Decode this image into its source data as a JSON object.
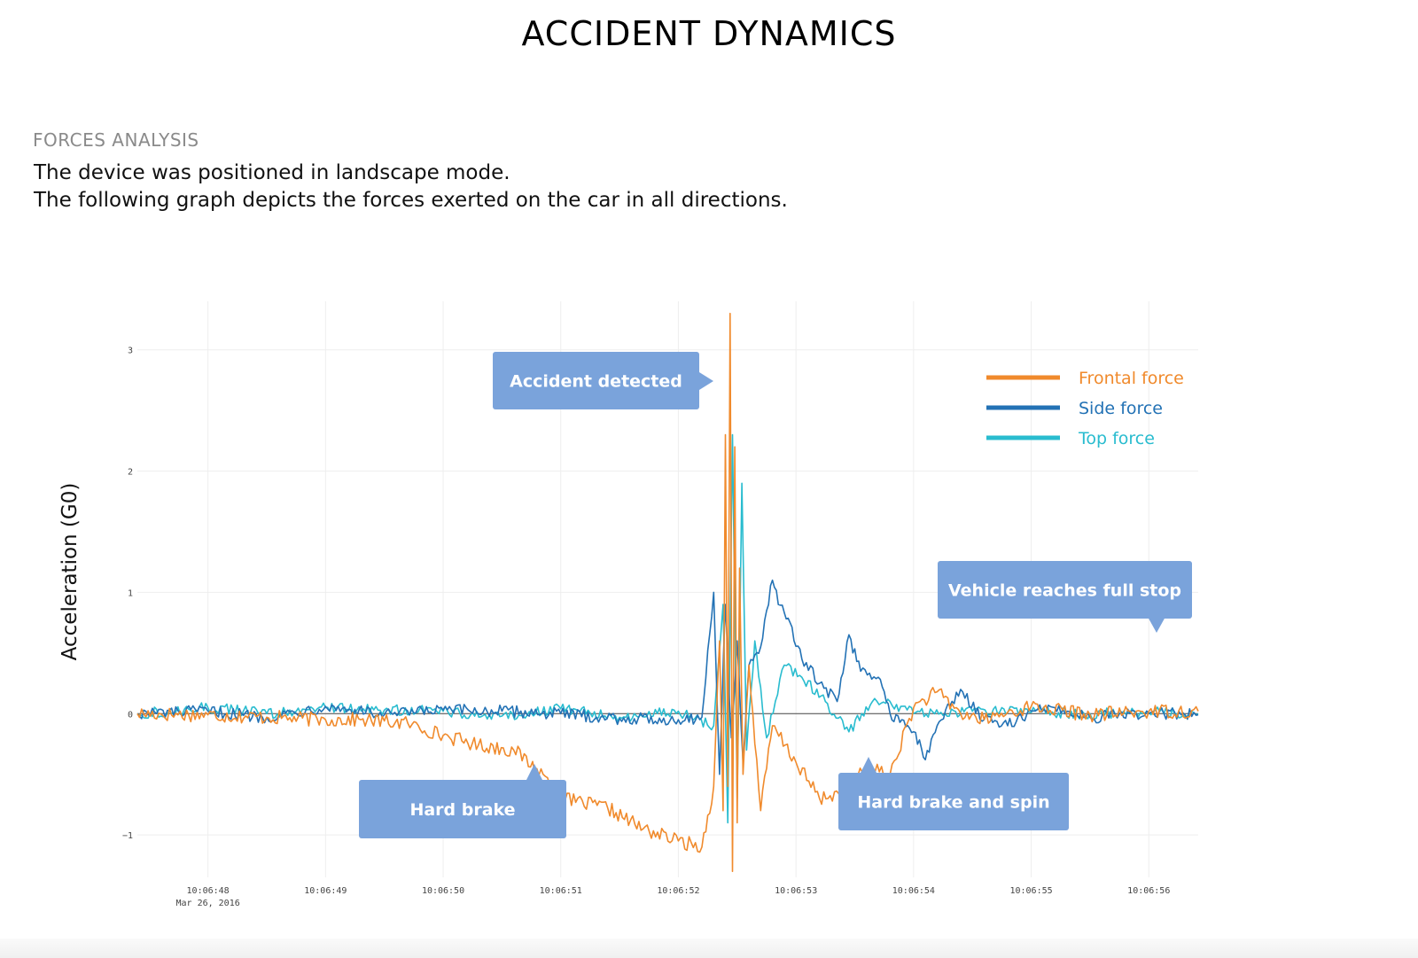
{
  "header": {
    "title": "ACCIDENT DYNAMICS",
    "section_label": "FORCES ANALYSIS",
    "description_lines": [
      "The device was positioned in landscape mode.",
      "The following graph depicts the forces exerted on the car in all directions."
    ]
  },
  "chart_data": {
    "type": "line",
    "title": "",
    "xlabel": "",
    "ylabel": "Acceleration (G0)",
    "date_label": "Mar 26, 2016",
    "xlim": [
      "10:06:47.40",
      "10:06:56.42"
    ],
    "ylim": [
      -1.35,
      3.4
    ],
    "y_ticks": [
      -1,
      0,
      1,
      2,
      3
    ],
    "y_tick_labels": [
      "−1",
      "0",
      "1",
      "2",
      "3"
    ],
    "x_ticks": [
      "10:06:48",
      "10:06:49",
      "10:06:50",
      "10:06:51",
      "10:06:52",
      "10:06:53",
      "10:06:54",
      "10:06:55",
      "10:06:56"
    ],
    "grid": true,
    "legend_position": "top-right",
    "series": [
      {
        "name": "Frontal force",
        "color": "#f08a2c",
        "x": [
          "10:06:47.40",
          "10:06:48.00",
          "10:06:48.50",
          "10:06:49.00",
          "10:06:49.30",
          "10:06:49.70",
          "10:06:50.00",
          "10:06:50.30",
          "10:06:50.60",
          "10:06:50.85",
          "10:06:51.00",
          "10:06:51.40",
          "10:06:51.70",
          "10:06:52.00",
          "10:06:52.20",
          "10:06:52.30",
          "10:06:52.35",
          "10:06:52.38",
          "10:06:52.40",
          "10:06:52.42",
          "10:06:52.44",
          "10:06:52.46",
          "10:06:52.48",
          "10:06:52.50",
          "10:06:52.52",
          "10:06:52.55",
          "10:06:52.60",
          "10:06:52.70",
          "10:06:52.80",
          "10:06:53.00",
          "10:06:53.20",
          "10:06:53.40",
          "10:06:53.60",
          "10:06:53.80",
          "10:06:54.00",
          "10:06:54.20",
          "10:06:54.40",
          "10:06:54.60",
          "10:06:55.00",
          "10:06:55.50",
          "10:06:56.00",
          "10:06:56.42"
        ],
        "values": [
          0.0,
          -0.01,
          -0.03,
          -0.05,
          -0.05,
          -0.08,
          -0.18,
          -0.26,
          -0.3,
          -0.5,
          -0.7,
          -0.78,
          -0.95,
          -1.05,
          -1.1,
          -0.6,
          0.6,
          -0.8,
          2.3,
          -0.6,
          3.3,
          -1.3,
          2.2,
          -0.9,
          1.2,
          -0.5,
          0.4,
          -0.8,
          -0.1,
          -0.4,
          -0.7,
          -0.65,
          -0.45,
          -0.5,
          0.05,
          0.18,
          0.0,
          -0.05,
          0.06,
          -0.01,
          0.02,
          0.02
        ]
      },
      {
        "name": "Side force",
        "color": "#2372b5",
        "x": [
          "10:06:47.40",
          "10:06:48.00",
          "10:06:48.50",
          "10:06:49.00",
          "10:06:49.50",
          "10:06:50.00",
          "10:06:50.50",
          "10:06:51.00",
          "10:06:51.50",
          "10:06:52.00",
          "10:06:52.20",
          "10:06:52.30",
          "10:06:52.35",
          "10:06:52.40",
          "10:06:52.45",
          "10:06:52.50",
          "10:06:52.55",
          "10:06:52.60",
          "10:06:52.70",
          "10:06:52.80",
          "10:06:52.85",
          "10:06:52.95",
          "10:06:53.05",
          "10:06:53.20",
          "10:06:53.35",
          "10:06:53.45",
          "10:06:53.55",
          "10:06:53.70",
          "10:06:53.80",
          "10:06:53.90",
          "10:06:54.00",
          "10:06:54.10",
          "10:06:54.20",
          "10:06:54.40",
          "10:06:54.60",
          "10:06:54.80",
          "10:06:55.00",
          "10:06:55.20",
          "10:06:55.50",
          "10:06:56.00",
          "10:06:56.42"
        ],
        "values": [
          0.0,
          0.02,
          -0.03,
          0.06,
          -0.01,
          0.03,
          0.02,
          0.0,
          -0.04,
          -0.05,
          -0.03,
          1.0,
          -0.5,
          0.9,
          -0.2,
          0.6,
          -0.4,
          0.4,
          0.55,
          1.1,
          0.9,
          0.75,
          0.45,
          0.25,
          0.1,
          0.65,
          0.35,
          0.3,
          0.0,
          -0.05,
          -0.15,
          -0.38,
          -0.1,
          0.2,
          -0.05,
          -0.1,
          0.02,
          0.05,
          -0.03,
          0.0,
          -0.01
        ]
      },
      {
        "name": "Top force",
        "color": "#29bccf",
        "x": [
          "10:06:47.40",
          "10:06:48.00",
          "10:06:48.50",
          "10:06:49.00",
          "10:06:49.50",
          "10:06:50.00",
          "10:06:50.50",
          "10:06:51.00",
          "10:06:51.50",
          "10:06:52.00",
          "10:06:52.30",
          "10:06:52.38",
          "10:06:52.42",
          "10:06:52.46",
          "10:06:52.50",
          "10:06:52.54",
          "10:06:52.58",
          "10:06:52.65",
          "10:06:52.75",
          "10:06:52.90",
          "10:06:53.05",
          "10:06:53.25",
          "10:06:53.45",
          "10:06:53.65",
          "10:06:53.80",
          "10:06:54.00",
          "10:06:54.50",
          "10:06:55.00",
          "10:06:55.50",
          "10:06:56.00",
          "10:06:56.42"
        ],
        "values": [
          0.0,
          0.05,
          0.0,
          0.05,
          0.03,
          0.02,
          -0.02,
          0.04,
          -0.03,
          0.02,
          -0.1,
          0.9,
          -0.9,
          2.3,
          -0.7,
          1.9,
          -0.3,
          0.6,
          -0.2,
          0.4,
          0.3,
          0.1,
          -0.15,
          0.1,
          0.1,
          0.0,
          0.02,
          0.01,
          0.0,
          0.01,
          0.0
        ]
      }
    ],
    "annotations": [
      {
        "text": "Accident detected",
        "x": "10:06:52.28",
        "y": 2.63
      },
      {
        "text": "Hard brake",
        "x": "10:06:50.85",
        "y": -0.78
      },
      {
        "text": "Vehicle reaches full stop",
        "x": "10:06:55.55",
        "y": 0.32
      },
      {
        "text": "Hard brake and spin",
        "x": "10:06:53.60",
        "y": -0.78
      }
    ]
  }
}
